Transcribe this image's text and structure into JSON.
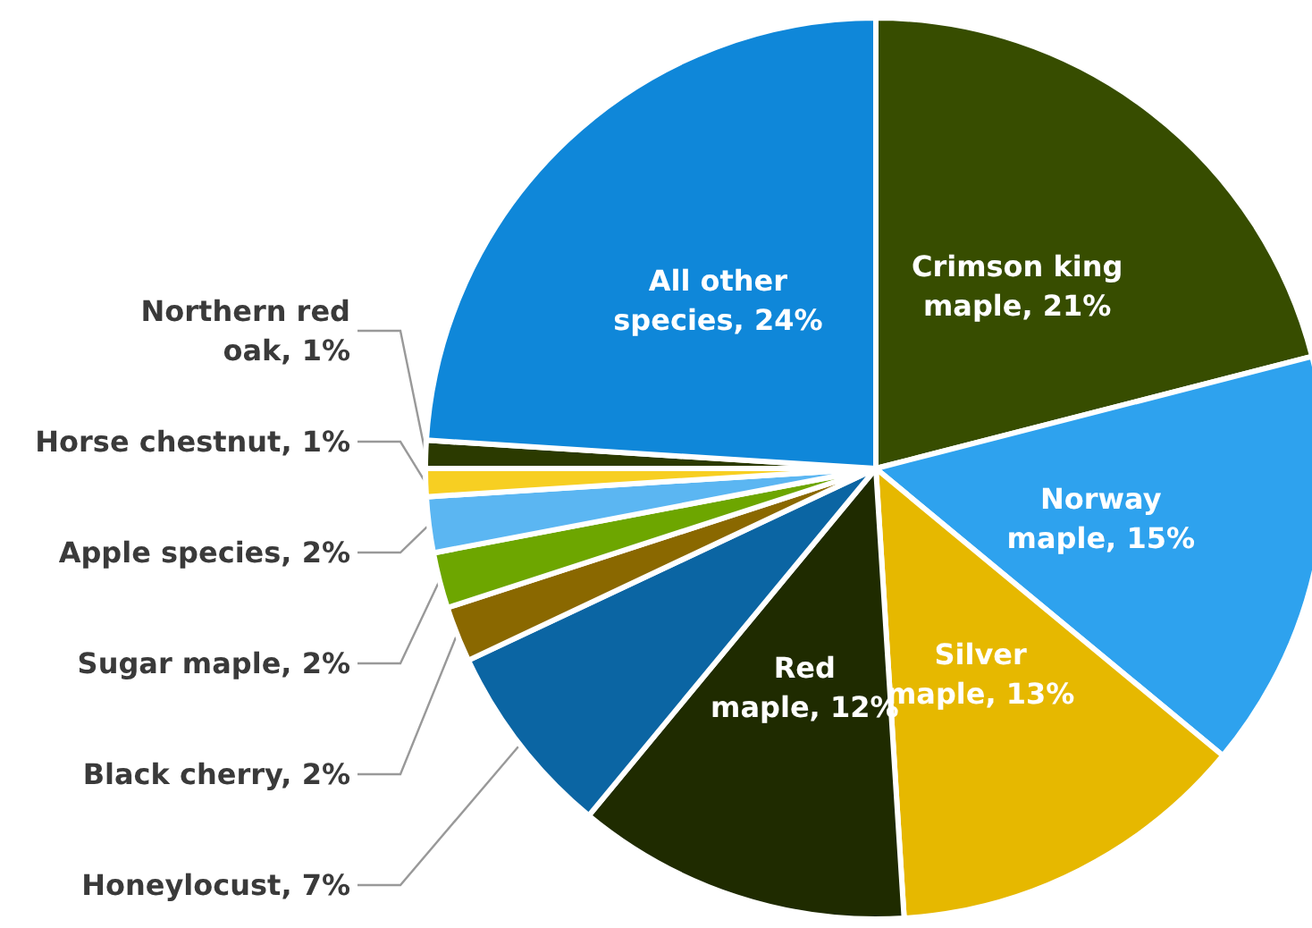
{
  "chart_data": {
    "type": "pie",
    "categories": [
      "Crimson king maple",
      "Norway maple",
      "Silver maple",
      "Red maple",
      "Honeylocust",
      "Black cherry",
      "Sugar maple",
      "Apple species",
      "Horse chestnut",
      "Northern red oak",
      "All other species"
    ],
    "values": [
      21,
      15,
      13,
      12,
      7,
      2,
      2,
      2,
      1,
      1,
      24
    ],
    "value_labels": [
      "21%",
      "15%",
      "13%",
      "12%",
      "7%",
      "2%",
      "2%",
      "2%",
      "1%",
      "1%",
      "24%"
    ],
    "colors": [
      "#374d00",
      "#2ea2ee",
      "#e6b800",
      "#1f2b00",
      "#0b65a3",
      "#8a6800",
      "#6da600",
      "#5bb6f2",
      "#f7cf22",
      "#2b3a00",
      "#0f87d9"
    ],
    "legend": false
  }
}
